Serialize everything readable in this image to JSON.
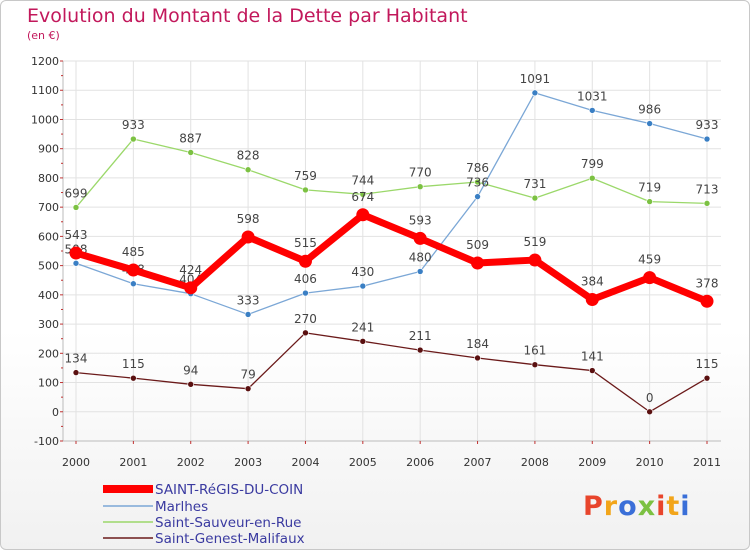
{
  "title": "Evolution du Montant de la Dette par Habitant",
  "subtitle": "(en €)",
  "logo_text": "Proxiti",
  "logo_colors": [
    "#e8452c",
    "#f2a51a",
    "#3a6fd8",
    "#7cc142",
    "#e8452c",
    "#f2a51a",
    "#3a6fd8"
  ],
  "chart_data": {
    "type": "line",
    "x": [
      "2000",
      "2001",
      "2002",
      "2003",
      "2004",
      "2005",
      "2006",
      "2007",
      "2008",
      "2009",
      "2010",
      "2011"
    ],
    "ylim": [
      -100,
      1200
    ],
    "yticks": [
      -100,
      0,
      100,
      200,
      300,
      400,
      500,
      600,
      700,
      800,
      900,
      1000,
      1100,
      1200
    ],
    "grid": true,
    "legend_placement": "bottom-left",
    "series": [
      {
        "name": "Saint-Genest-Malifaux",
        "color": "#6b1a1a",
        "point_color": "#5a1010",
        "thick": false,
        "values": [
          134,
          115,
          94,
          79,
          270,
          241,
          211,
          184,
          161,
          141,
          0,
          115
        ]
      },
      {
        "name": "Saint-Sauveur-en-Rue",
        "color": "#9bd86a",
        "point_color": "#7cc142",
        "thick": false,
        "values": [
          699,
          933,
          887,
          828,
          759,
          744,
          770,
          786,
          731,
          799,
          719,
          713
        ]
      },
      {
        "name": "Marlhes",
        "color": "#7ba7d6",
        "point_color": "#3a7fc4",
        "thick": false,
        "values": [
          508,
          438,
          404,
          333,
          406,
          430,
          480,
          736,
          1091,
          1031,
          986,
          933
        ]
      },
      {
        "name": "SAINT-RéGIS-DU-COIN",
        "color": "#ff0000",
        "point_color": "#ff0000",
        "thick": true,
        "values": [
          543,
          485,
          424,
          598,
          515,
          674,
          593,
          509,
          519,
          384,
          459,
          378
        ]
      }
    ],
    "legend_order": [
      "SAINT-RéGIS-DU-COIN",
      "Marlhes",
      "Saint-Sauveur-en-Rue",
      "Saint-Genest-Malifaux"
    ]
  }
}
